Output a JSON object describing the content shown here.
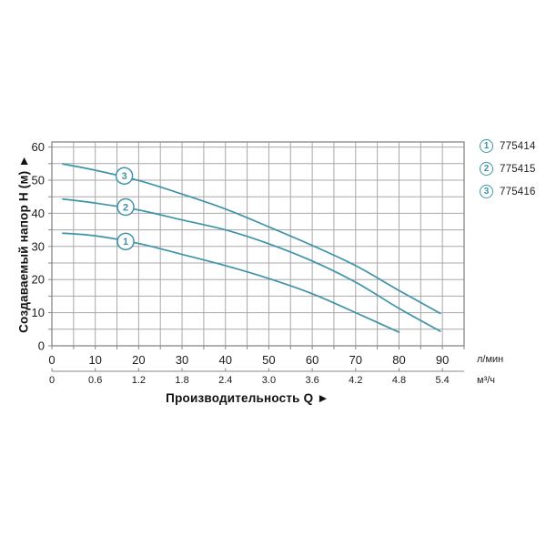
{
  "chart_data": {
    "type": "line",
    "title": "",
    "description": "Pump performance curves: head H (m) versus flow Q",
    "grid": true,
    "legend_position": "top-right",
    "colors": {
      "curve": "#3f93a8",
      "grid": "#a8a8a8",
      "frame": "#878787",
      "text": "#1b1b1b"
    },
    "x_axis": {
      "label": "Производительность Q ►",
      "primary_unit": "л/мин",
      "secondary_unit": "м³/ч",
      "primary_tick_values": [
        0,
        10,
        20,
        30,
        40,
        50,
        60,
        70,
        80,
        90
      ],
      "primary_tick_labels": [
        "0",
        "10",
        "20",
        "30",
        "40",
        "50",
        "60",
        "70",
        "80",
        "90"
      ],
      "secondary_tick_labels": [
        "0",
        "0.6",
        "1.2",
        "1.8",
        "2.4",
        "3.0",
        "3.6",
        "4.2",
        "4.8",
        "5.4"
      ],
      "range_lmin": [
        0,
        95
      ],
      "grid_step": 5
    },
    "y_axis": {
      "label": "Создаваемый напор H (м) ►",
      "tick_values": [
        0,
        10,
        20,
        30,
        40,
        50,
        60
      ],
      "tick_labels": [
        "0",
        "10",
        "20",
        "30",
        "40",
        "50",
        "60"
      ],
      "range_m": [
        0,
        61.5
      ],
      "grid_step": 5
    },
    "series": [
      {
        "id": "1",
        "article": "775414",
        "marker_at": [
          17,
          31.5
        ],
        "points": [
          [
            2.5,
            34
          ],
          [
            10,
            33.2
          ],
          [
            20,
            30.9
          ],
          [
            30,
            27.6
          ],
          [
            40,
            24.2
          ],
          [
            50,
            20.3
          ],
          [
            60,
            15.7
          ],
          [
            70,
            10
          ],
          [
            80,
            4.1
          ]
        ]
      },
      {
        "id": "2",
        "article": "775415",
        "marker_at": [
          17,
          41.9
        ],
        "points": [
          [
            2.5,
            44.3
          ],
          [
            10,
            43.1
          ],
          [
            20,
            41
          ],
          [
            30,
            38
          ],
          [
            40,
            35
          ],
          [
            50,
            30.8
          ],
          [
            60,
            25.6
          ],
          [
            70,
            19.2
          ],
          [
            80,
            11.3
          ],
          [
            89.5,
            4.4
          ]
        ]
      },
      {
        "id": "3",
        "article": "775416",
        "marker_at": [
          16.7,
          51.3
        ],
        "points": [
          [
            2.5,
            54.9
          ],
          [
            10,
            53
          ],
          [
            20,
            49.9
          ],
          [
            30,
            45.8
          ],
          [
            40,
            41.3
          ],
          [
            50,
            35.9
          ],
          [
            60,
            30.3
          ],
          [
            70,
            24.2
          ],
          [
            80,
            16.7
          ],
          [
            89.5,
            9.8
          ]
        ]
      }
    ]
  }
}
